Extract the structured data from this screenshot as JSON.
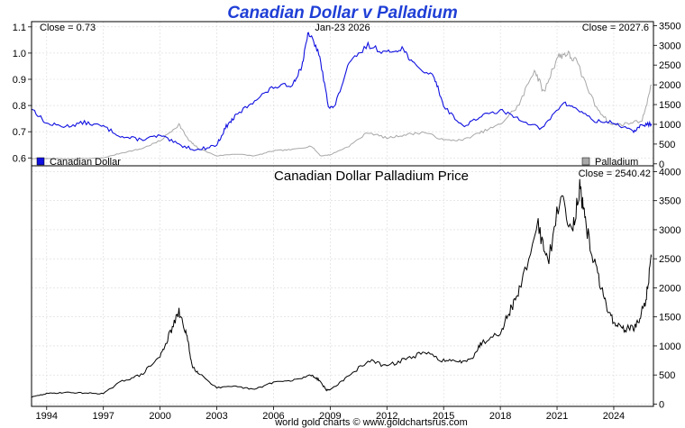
{
  "chart_data": [
    {
      "type": "line",
      "title": "Canadian Dollar v Palladium",
      "date_label": "Jan-23  2026",
      "x_tick_labels": [
        "1994",
        "1997",
        "2000",
        "2003",
        "2006",
        "2009",
        "2012",
        "2015",
        "2018",
        "2021",
        "2024"
      ],
      "x_tick_years": [
        1994,
        1997,
        2000,
        2003,
        2006,
        2009,
        2012,
        2015,
        2018,
        2021,
        2024
      ],
      "xlim": [
        1993.2,
        2026.1
      ],
      "left_axis": {
        "ylim": [
          0.57,
          1.12
        ],
        "ticks": [
          0.6,
          0.7,
          0.8,
          0.9,
          1.0,
          1.1
        ],
        "tick_labels": [
          "0.6",
          "0.7",
          "0.8",
          "0.9",
          "1.0",
          "1.1"
        ]
      },
      "right_axis": {
        "ylim": [
          -50,
          3600
        ],
        "ticks": [
          0,
          500,
          1000,
          1500,
          2000,
          2500,
          3000,
          3500
        ],
        "tick_labels": [
          "0",
          "500",
          "1000",
          "1500",
          "2000",
          "2500",
          "3000",
          "3500"
        ]
      },
      "close_left": "Close = 0.73",
      "close_right": "Close = 2027.6",
      "series": [
        {
          "name": "Canadian Dollar",
          "axis": "left",
          "color": "#1010e0",
          "points": [
            [
              1993.2,
              0.79
            ],
            [
              1994.0,
              0.73
            ],
            [
              1995.0,
              0.72
            ],
            [
              1996.0,
              0.735
            ],
            [
              1997.0,
              0.72
            ],
            [
              1998.0,
              0.68
            ],
            [
              1999.0,
              0.67
            ],
            [
              2000.0,
              0.685
            ],
            [
              2001.0,
              0.65
            ],
            [
              2002.0,
              0.63
            ],
            [
              2003.0,
              0.65
            ],
            [
              2003.5,
              0.72
            ],
            [
              2004.0,
              0.76
            ],
            [
              2005.0,
              0.82
            ],
            [
              2006.0,
              0.87
            ],
            [
              2007.0,
              0.88
            ],
            [
              2007.5,
              0.95
            ],
            [
              2007.85,
              1.08
            ],
            [
              2008.4,
              1.0
            ],
            [
              2008.9,
              0.8
            ],
            [
              2009.2,
              0.79
            ],
            [
              2010.0,
              0.96
            ],
            [
              2011.0,
              1.03
            ],
            [
              2012.0,
              1.0
            ],
            [
              2012.8,
              1.02
            ],
            [
              2013.5,
              0.95
            ],
            [
              2014.5,
              0.91
            ],
            [
              2015.0,
              0.8
            ],
            [
              2016.0,
              0.72
            ],
            [
              2017.0,
              0.76
            ],
            [
              2018.0,
              0.78
            ],
            [
              2019.0,
              0.75
            ],
            [
              2020.2,
              0.71
            ],
            [
              2021.3,
              0.81
            ],
            [
              2022.0,
              0.79
            ],
            [
              2023.0,
              0.74
            ],
            [
              2024.0,
              0.735
            ],
            [
              2025.0,
              0.7
            ],
            [
              2025.5,
              0.725
            ],
            [
              2026.0,
              0.73
            ]
          ]
        },
        {
          "name": "Palladium",
          "axis": "right",
          "color": "#a8a8a8",
          "points": [
            [
              1993.2,
              130
            ],
            [
              1996.0,
              130
            ],
            [
              1997.0,
              150
            ],
            [
              1998.0,
              280
            ],
            [
              1999.0,
              380
            ],
            [
              2000.0,
              580
            ],
            [
              2001.0,
              1000
            ],
            [
              2001.5,
              600
            ],
            [
              2002.0,
              400
            ],
            [
              2003.0,
              200
            ],
            [
              2004.0,
              250
            ],
            [
              2005.0,
              200
            ],
            [
              2006.0,
              330
            ],
            [
              2007.0,
              360
            ],
            [
              2008.0,
              450
            ],
            [
              2008.5,
              200
            ],
            [
              2009.0,
              230
            ],
            [
              2010.0,
              450
            ],
            [
              2011.0,
              800
            ],
            [
              2012.0,
              650
            ],
            [
              2013.0,
              740
            ],
            [
              2014.0,
              800
            ],
            [
              2015.0,
              600
            ],
            [
              2016.0,
              600
            ],
            [
              2017.0,
              800
            ],
            [
              2018.0,
              1000
            ],
            [
              2019.0,
              1500
            ],
            [
              2019.8,
              2400
            ],
            [
              2020.3,
              1800
            ],
            [
              2021.0,
              2700
            ],
            [
              2021.5,
              2800
            ],
            [
              2022.0,
              2600
            ],
            [
              2023.0,
              1500
            ],
            [
              2023.8,
              1000
            ],
            [
              2024.5,
              1000
            ],
            [
              2025.5,
              1100
            ],
            [
              2026.0,
              2000
            ]
          ]
        }
      ],
      "legend": [
        "Canadian Dollar",
        "Palladium"
      ]
    },
    {
      "type": "line",
      "title": "Canadian Dollar Palladium Price",
      "close_label": "Close = 2540.42",
      "xlim": [
        1993.2,
        2026.1
      ],
      "ylim": [
        -40,
        4100
      ],
      "y_ticks": [
        0,
        500,
        1000,
        1500,
        2000,
        2500,
        3000,
        3500,
        4000
      ],
      "y_tick_labels": [
        "0",
        "500",
        "1000",
        "1500",
        "2000",
        "2500",
        "3000",
        "3500",
        "4000"
      ],
      "series": [
        {
          "name": "Canadian Dollar Palladium Price",
          "color": "#000000",
          "points": [
            [
              1993.2,
              120
            ],
            [
              1994.0,
              180
            ],
            [
              1995.0,
              200
            ],
            [
              1996.0,
              190
            ],
            [
              1997.0,
              180
            ],
            [
              1998.0,
              400
            ],
            [
              1999.0,
              500
            ],
            [
              2000.0,
              820
            ],
            [
              2000.5,
              1200
            ],
            [
              2001.0,
              1580
            ],
            [
              2001.4,
              1200
            ],
            [
              2001.7,
              650
            ],
            [
              2002.0,
              550
            ],
            [
              2003.0,
              280
            ],
            [
              2004.0,
              300
            ],
            [
              2005.0,
              250
            ],
            [
              2006.0,
              380
            ],
            [
              2007.0,
              400
            ],
            [
              2008.0,
              500
            ],
            [
              2008.4,
              420
            ],
            [
              2008.8,
              240
            ],
            [
              2009.0,
              250
            ],
            [
              2010.0,
              480
            ],
            [
              2011.0,
              750
            ],
            [
              2012.0,
              650
            ],
            [
              2013.0,
              780
            ],
            [
              2014.0,
              880
            ],
            [
              2015.0,
              750
            ],
            [
              2015.8,
              720
            ],
            [
              2016.5,
              800
            ],
            [
              2017.0,
              1050
            ],
            [
              2018.0,
              1250
            ],
            [
              2018.5,
              1600
            ],
            [
              2019.0,
              1950
            ],
            [
              2020.0,
              3100
            ],
            [
              2020.5,
              2400
            ],
            [
              2021.2,
              3600
            ],
            [
              2021.8,
              3000
            ],
            [
              2022.2,
              3700
            ],
            [
              2022.5,
              3100
            ],
            [
              2023.0,
              2400
            ],
            [
              2023.5,
              1800
            ],
            [
              2024.0,
              1400
            ],
            [
              2024.5,
              1300
            ],
            [
              2025.0,
              1300
            ],
            [
              2025.3,
              1400
            ],
            [
              2025.7,
              1800
            ],
            [
              2026.0,
              2540
            ]
          ]
        }
      ]
    }
  ],
  "footer": "world gold charts © www.goldchartsrus.com"
}
